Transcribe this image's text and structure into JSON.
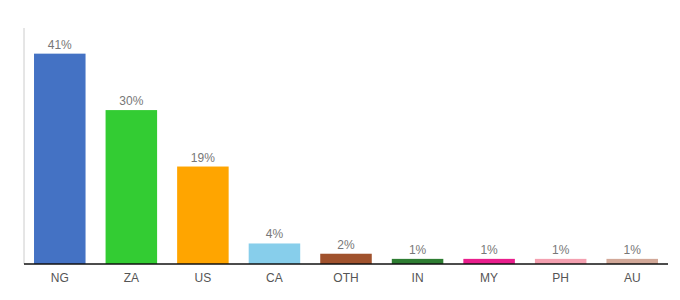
{
  "chart_data": {
    "type": "bar",
    "categories": [
      "NG",
      "ZA",
      "US",
      "CA",
      "OTH",
      "IN",
      "MY",
      "PH",
      "AU"
    ],
    "values": [
      41,
      30,
      19,
      4,
      2,
      1,
      1,
      1,
      1
    ],
    "value_labels": [
      "41%",
      "30%",
      "19%",
      "4%",
      "2%",
      "1%",
      "1%",
      "1%",
      "1%"
    ],
    "colors": [
      "#4472c4",
      "#33cc33",
      "#ffa500",
      "#87ceeb",
      "#a0522d",
      "#2e7d32",
      "#e91e8c",
      "#f4a0b0",
      "#d2a898"
    ],
    "ylim": [
      0,
      46
    ],
    "grid": false,
    "data_labels": true,
    "tick_labels": "x"
  }
}
